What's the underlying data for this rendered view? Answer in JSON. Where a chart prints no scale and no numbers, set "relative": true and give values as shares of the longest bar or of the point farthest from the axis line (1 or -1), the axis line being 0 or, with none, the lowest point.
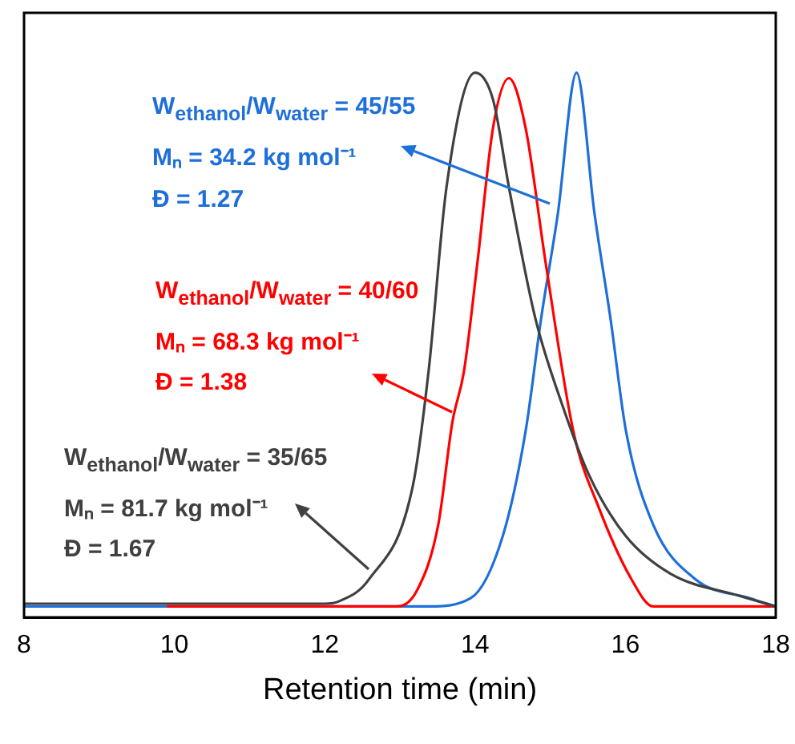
{
  "chart_data": {
    "type": "line",
    "xlabel": "Retention time (min)",
    "relative": true,
    "xlim": [
      8,
      18
    ],
    "xticks": [
      8,
      10,
      12,
      14,
      16,
      18
    ],
    "grid": false,
    "legend": false,
    "marker": "none",
    "line_style": "solid",
    "annotations": [
      "W$_{ethanol}$/W$_{water}$ = 45/55",
      "Mₙ = 34.2 kg mol⁻¹",
      "Đ = 1.27",
      "W$_{ethanol}$/W$_{water}$ = 40/60",
      "Mₙ = 68.3 kg mol⁻¹",
      "Đ = 1.38",
      "W$_{ethanol}$/W$_{water}$ = 35/65",
      "Mₙ = 81.7 kg mol⁻¹",
      "Đ = 1.67"
    ],
    "series": [
      {
        "color": "#404040",
        "x": [
          8,
          10,
          12,
          12.2,
          12.59,
          13.17,
          13.38,
          13.62,
          14,
          14.24,
          14.45,
          14.8,
          15.16,
          15.52,
          16,
          16.6,
          17.5,
          18
        ],
        "values": [
          0.025,
          0.025,
          0.025,
          0.03,
          0.07,
          0.24,
          0.45,
          0.79,
          1,
          0.95,
          0.79,
          0.55,
          0.39,
          0.26,
          0.15,
          0.08,
          0.04,
          0.02
        ]
      },
      {
        "color": "#ff0000",
        "x": [
          9.9,
          12,
          12.95,
          13.23,
          13.51,
          13.7,
          13.85,
          14.03,
          14.24,
          14.45,
          14.67,
          14.94,
          15.31,
          15.65,
          16.08,
          16.37,
          18
        ],
        "values": [
          0.02,
          0.02,
          0.02,
          0.05,
          0.17,
          0.36,
          0.45,
          0.65,
          0.9,
          0.99,
          0.9,
          0.65,
          0.34,
          0.2,
          0.07,
          0.02,
          0.02
        ]
      },
      {
        "color": "#1e6fd9",
        "x": [
          8,
          13.38,
          13.94,
          14.37,
          14.67,
          14.88,
          15.1,
          15.35,
          15.59,
          15.8,
          16.01,
          16.37,
          16.93,
          17.66,
          18
        ],
        "values": [
          0.02,
          0.02,
          0.035,
          0.15,
          0.34,
          0.55,
          0.74,
          1,
          0.74,
          0.55,
          0.34,
          0.17,
          0.07,
          0.035,
          0.02
        ]
      }
    ]
  }
}
